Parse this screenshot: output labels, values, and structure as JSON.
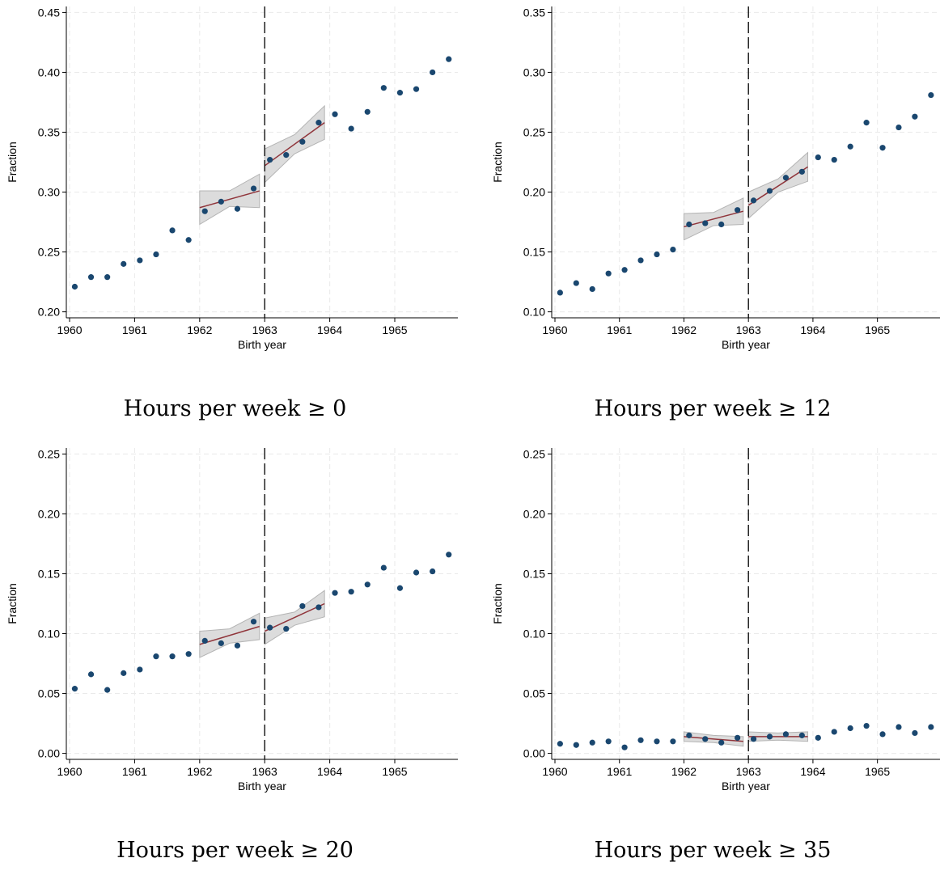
{
  "chart_data": [
    {
      "type": "scatter",
      "caption": "Hours per week ≥ 0",
      "xlabel": "Birth year",
      "ylabel": "Fraction",
      "xlim": [
        1959.95,
        1965.97
      ],
      "ylim": [
        0.195,
        0.455
      ],
      "xticks": [
        1960,
        1961,
        1962,
        1963,
        1964,
        1965
      ],
      "xtick_labels": [
        "1960",
        "1961",
        "1962",
        "1963",
        "1964",
        "1965"
      ],
      "yticks": [
        0.2,
        0.25,
        0.3,
        0.35,
        0.4,
        0.45
      ],
      "ytick_labels": [
        "0.20",
        "0.25",
        "0.30",
        "0.35",
        "0.40",
        "0.45"
      ],
      "cutoff": 1963,
      "grid": true,
      "x": [
        1960.08,
        1960.33,
        1960.58,
        1960.83,
        1961.08,
        1961.33,
        1961.58,
        1961.83,
        1962.08,
        1962.33,
        1962.58,
        1962.83,
        1963.08,
        1963.33,
        1963.58,
        1963.83,
        1964.08,
        1964.33,
        1964.58,
        1964.83,
        1965.08,
        1965.33,
        1965.58,
        1965.83
      ],
      "y": [
        0.221,
        0.229,
        0.229,
        0.24,
        0.243,
        0.248,
        0.268,
        0.26,
        0.284,
        0.292,
        0.286,
        0.303,
        0.327,
        0.331,
        0.342,
        0.358,
        0.365,
        0.353,
        0.367,
        0.387,
        0.383,
        0.386,
        0.4,
        0.411
      ],
      "fits": [
        {
          "x": [
            1962.0,
            1962.92
          ],
          "y": [
            0.287,
            0.301
          ],
          "lower": [
            [
              1962.0,
              0.273
            ],
            [
              1962.46,
              0.288
            ],
            [
              1962.92,
              0.287
            ]
          ],
          "upper": [
            [
              1962.0,
              0.301
            ],
            [
              1962.46,
              0.301
            ],
            [
              1962.92,
              0.315
            ]
          ]
        },
        {
          "x": [
            1963.0,
            1963.92
          ],
          "y": [
            0.322,
            0.358
          ],
          "lower": [
            [
              1963.0,
              0.308
            ],
            [
              1963.46,
              0.332
            ],
            [
              1963.92,
              0.344
            ]
          ],
          "upper": [
            [
              1963.0,
              0.336
            ],
            [
              1963.46,
              0.348
            ],
            [
              1963.92,
              0.372
            ]
          ]
        }
      ]
    },
    {
      "type": "scatter",
      "caption": "Hours per week ≥ 12",
      "xlabel": "Birth year",
      "ylabel": "Fraction",
      "xlim": [
        1959.95,
        1965.97
      ],
      "ylim": [
        0.095,
        0.355
      ],
      "xticks": [
        1960,
        1961,
        1962,
        1963,
        1964,
        1965
      ],
      "xtick_labels": [
        "1960",
        "1961",
        "1962",
        "1963",
        "1964",
        "1965"
      ],
      "yticks": [
        0.1,
        0.15,
        0.2,
        0.25,
        0.3,
        0.35
      ],
      "ytick_labels": [
        "0.10",
        "0.15",
        "0.20",
        "0.25",
        "0.30",
        "0.35"
      ],
      "cutoff": 1963,
      "grid": true,
      "x": [
        1960.08,
        1960.33,
        1960.58,
        1960.83,
        1961.08,
        1961.33,
        1961.58,
        1961.83,
        1962.08,
        1962.33,
        1962.58,
        1962.83,
        1963.08,
        1963.33,
        1963.58,
        1963.83,
        1964.08,
        1964.33,
        1964.58,
        1964.83,
        1965.08,
        1965.33,
        1965.58,
        1965.83
      ],
      "y": [
        0.116,
        0.124,
        0.119,
        0.132,
        0.135,
        0.143,
        0.148,
        0.152,
        0.173,
        0.174,
        0.173,
        0.185,
        0.193,
        0.201,
        0.212,
        0.217,
        0.229,
        0.227,
        0.238,
        0.258,
        0.237,
        0.254,
        0.263,
        0.281
      ],
      "fits": [
        {
          "x": [
            1962.0,
            1962.92
          ],
          "y": [
            0.171,
            0.184
          ],
          "lower": [
            [
              1962.0,
              0.16
            ],
            [
              1962.46,
              0.172
            ],
            [
              1962.92,
              0.173
            ]
          ],
          "upper": [
            [
              1962.0,
              0.182
            ],
            [
              1962.46,
              0.183
            ],
            [
              1962.92,
              0.195
            ]
          ]
        },
        {
          "x": [
            1963.0,
            1963.92
          ],
          "y": [
            0.189,
            0.221
          ],
          "lower": [
            [
              1963.0,
              0.178
            ],
            [
              1963.46,
              0.2
            ],
            [
              1963.92,
              0.209
            ]
          ],
          "upper": [
            [
              1963.0,
              0.2
            ],
            [
              1963.46,
              0.211
            ],
            [
              1963.92,
              0.233
            ]
          ]
        }
      ]
    },
    {
      "type": "scatter",
      "caption": "Hours per week ≥ 20",
      "xlabel": "Birth year",
      "ylabel": "Fraction",
      "xlim": [
        1959.95,
        1965.97
      ],
      "ylim": [
        -0.005,
        0.255
      ],
      "xticks": [
        1960,
        1961,
        1962,
        1963,
        1964,
        1965
      ],
      "xtick_labels": [
        "1960",
        "1961",
        "1962",
        "1963",
        "1964",
        "1965"
      ],
      "yticks": [
        0.0,
        0.05,
        0.1,
        0.15,
        0.2,
        0.25
      ],
      "ytick_labels": [
        "0.00",
        "0.05",
        "0.10",
        "0.15",
        "0.20",
        "0.25"
      ],
      "cutoff": 1963,
      "grid": true,
      "x": [
        1960.08,
        1960.33,
        1960.58,
        1960.83,
        1961.08,
        1961.33,
        1961.58,
        1961.83,
        1962.08,
        1962.33,
        1962.58,
        1962.83,
        1963.08,
        1963.33,
        1963.58,
        1963.83,
        1964.08,
        1964.33,
        1964.58,
        1964.83,
        1965.08,
        1965.33,
        1965.58,
        1965.83
      ],
      "y": [
        0.054,
        0.066,
        0.053,
        0.067,
        0.07,
        0.081,
        0.081,
        0.083,
        0.094,
        0.092,
        0.09,
        0.11,
        0.105,
        0.104,
        0.123,
        0.122,
        0.134,
        0.135,
        0.141,
        0.155,
        0.138,
        0.151,
        0.152,
        0.166
      ],
      "fits": [
        {
          "x": [
            1962.0,
            1962.92
          ],
          "y": [
            0.091,
            0.106
          ],
          "lower": [
            [
              1962.0,
              0.08
            ],
            [
              1962.46,
              0.092
            ],
            [
              1962.92,
              0.095
            ]
          ],
          "upper": [
            [
              1962.0,
              0.102
            ],
            [
              1962.46,
              0.104
            ],
            [
              1962.92,
              0.117
            ]
          ]
        },
        {
          "x": [
            1963.0,
            1963.92
          ],
          "y": [
            0.102,
            0.125
          ],
          "lower": [
            [
              1963.0,
              0.091
            ],
            [
              1963.46,
              0.107
            ],
            [
              1963.92,
              0.114
            ]
          ],
          "upper": [
            [
              1963.0,
              0.113
            ],
            [
              1963.46,
              0.118
            ],
            [
              1963.92,
              0.136
            ]
          ]
        }
      ]
    },
    {
      "type": "scatter",
      "caption": "Hours per week ≥ 35",
      "xlabel": "Birth year",
      "ylabel": "Fraction",
      "xlim": [
        1959.95,
        1965.97
      ],
      "ylim": [
        -0.005,
        0.255
      ],
      "xticks": [
        1960,
        1961,
        1962,
        1963,
        1964,
        1965
      ],
      "xtick_labels": [
        "1960",
        "1961",
        "1962",
        "1963",
        "1964",
        "1965"
      ],
      "yticks": [
        0.0,
        0.05,
        0.1,
        0.15,
        0.2,
        0.25
      ],
      "ytick_labels": [
        "0.00",
        "0.05",
        "0.10",
        "0.15",
        "0.20",
        "0.25"
      ],
      "cutoff": 1963,
      "grid": true,
      "x": [
        1960.08,
        1960.33,
        1960.58,
        1960.83,
        1961.08,
        1961.33,
        1961.58,
        1961.83,
        1962.08,
        1962.33,
        1962.58,
        1962.83,
        1963.08,
        1963.33,
        1963.58,
        1963.83,
        1964.08,
        1964.33,
        1964.58,
        1964.83,
        1965.08,
        1965.33,
        1965.58,
        1965.83
      ],
      "y": [
        0.008,
        0.007,
        0.009,
        0.01,
        0.005,
        0.011,
        0.01,
        0.01,
        0.015,
        0.012,
        0.009,
        0.013,
        0.012,
        0.014,
        0.016,
        0.015,
        0.013,
        0.018,
        0.021,
        0.023,
        0.016,
        0.022,
        0.017,
        0.022
      ],
      "fits": [
        {
          "x": [
            1962.0,
            1962.92
          ],
          "y": [
            0.014,
            0.01
          ],
          "lower": [
            [
              1962.0,
              0.01
            ],
            [
              1962.46,
              0.009
            ],
            [
              1962.92,
              0.006
            ]
          ],
          "upper": [
            [
              1962.0,
              0.018
            ],
            [
              1962.46,
              0.015
            ],
            [
              1962.92,
              0.014
            ]
          ]
        },
        {
          "x": [
            1963.0,
            1963.92
          ],
          "y": [
            0.014,
            0.014
          ],
          "lower": [
            [
              1963.0,
              0.01
            ],
            [
              1963.46,
              0.011
            ],
            [
              1963.92,
              0.01
            ]
          ],
          "upper": [
            [
              1963.0,
              0.018
            ],
            [
              1963.46,
              0.017
            ],
            [
              1963.92,
              0.018
            ]
          ]
        }
      ]
    }
  ],
  "colors": {
    "point": "#1a476f",
    "fit_line": "#90353b",
    "ci_fill": "#dcdcdc",
    "ci_stroke": "#b4b4b4",
    "grid": "#eaeaea",
    "cutoff_line": "#000000"
  }
}
